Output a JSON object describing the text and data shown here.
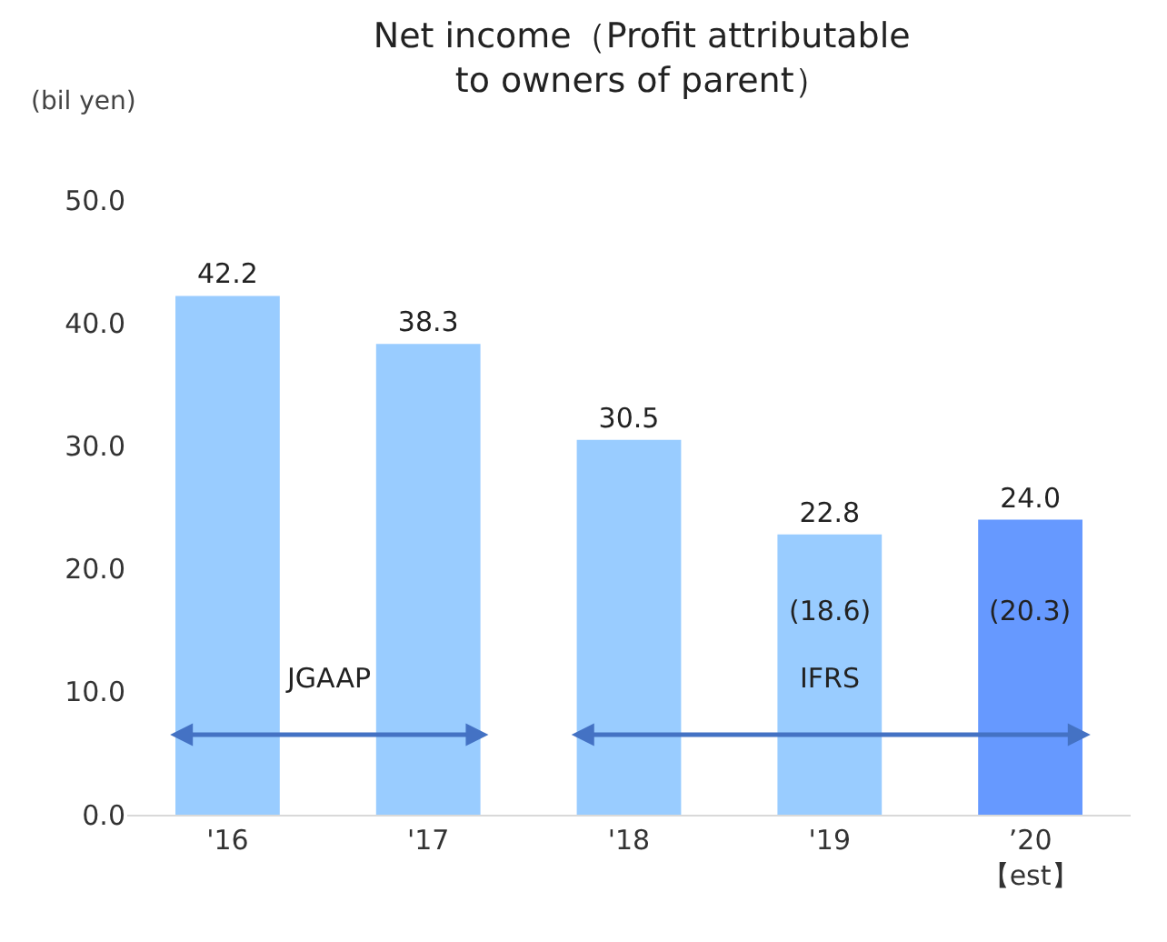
{
  "chart_data": {
    "type": "bar",
    "title": "Net income（Profit attributable to owners of parent）",
    "ylabel": "(bil yen)",
    "categories": [
      "'16",
      "'17",
      "'18",
      "'19",
      "’20 【est】"
    ],
    "values": [
      42.2,
      38.3,
      30.5,
      22.8,
      24.0
    ],
    "colors": [
      "#99ccff",
      "#99ccff",
      "#99ccff",
      "#99ccff",
      "#6699ff"
    ],
    "value_labels": [
      "42.2",
      "38.3",
      "30.5",
      "22.8",
      "24.0"
    ],
    "ylim": [
      0,
      50
    ],
    "yticks": [
      {
        "value": 0,
        "label": "0.0"
      },
      {
        "value": 10,
        "label": "10.0"
      },
      {
        "value": 20,
        "label": "20.0"
      },
      {
        "value": 30,
        "label": "30.0"
      },
      {
        "value": 40,
        "label": "40.0"
      },
      {
        "value": 50,
        "label": "50.0"
      }
    ],
    "grid": false,
    "annotations": [
      "(18.6)",
      "(20.3)",
      "JGAAP",
      "IFRS"
    ]
  }
}
